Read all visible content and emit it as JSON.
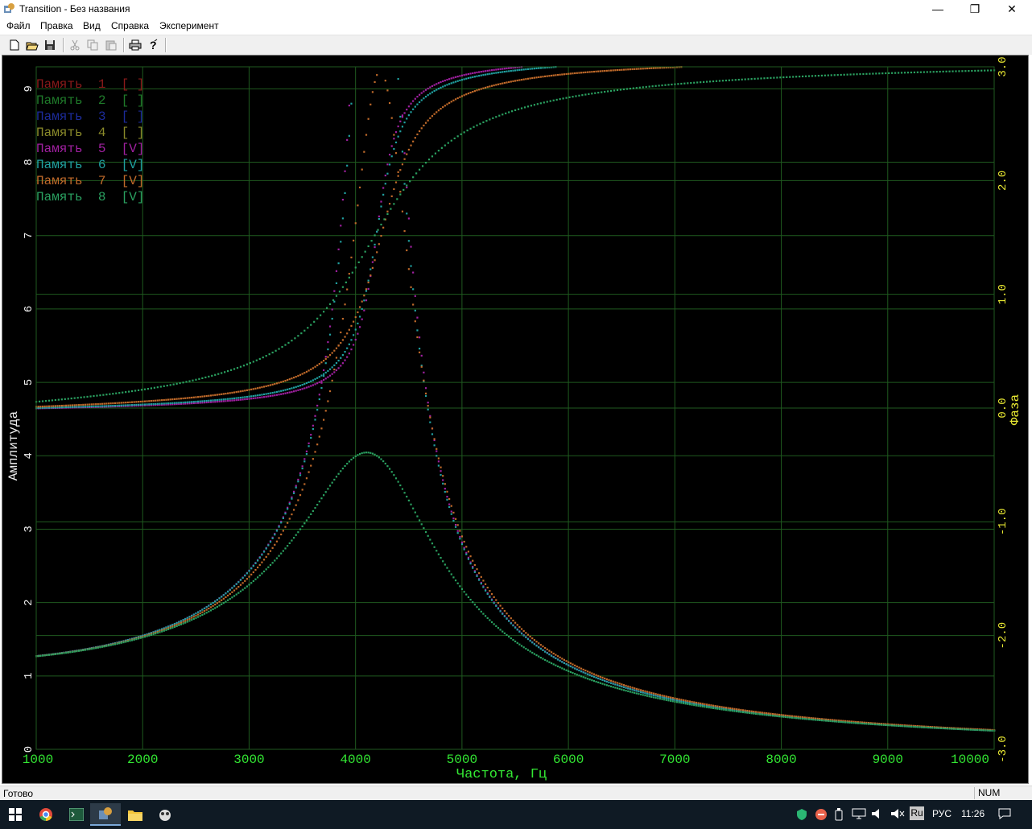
{
  "window": {
    "title": "Transition - Без названия",
    "controls": {
      "minimize": "—",
      "maximize": "❐",
      "close": "✕"
    }
  },
  "menu": [
    "Файл",
    "Правка",
    "Вид",
    "Справка",
    "Эксперимент"
  ],
  "toolbar": [
    "new-file-icon",
    "open-folder-icon",
    "save-icon",
    "cut-icon",
    "copy-icon",
    "paste-icon",
    "print-icon",
    "help-icon"
  ],
  "status": {
    "text": "Готово",
    "num": "NUM"
  },
  "taskbar": {
    "apps": [
      "windows-start-icon",
      "chrome-icon",
      "terminal-icon",
      "transition-app-icon",
      "file-explorer-icon",
      "game-app-icon"
    ],
    "tray": {
      "lang_badge": "Ru",
      "lang": "РУС",
      "time": "11:26"
    }
  },
  "chart_data": {
    "type": "scatter",
    "xlabel": "Частота, Гц",
    "ylabel": "Амплитуда",
    "y2label": "Фаза",
    "xlim": [
      1000,
      10000
    ],
    "ylim": [
      0,
      9.3
    ],
    "y2lim": [
      -3.0,
      3.0
    ],
    "x_ticks": [
      "1000",
      "2000",
      "3000",
      "4000",
      "5000",
      "6000",
      "7000",
      "8000",
      "9000",
      "10000"
    ],
    "y_ticks": [
      "0",
      "1",
      "2",
      "3",
      "4",
      "5",
      "6",
      "7",
      "8",
      "9"
    ],
    "y2_ticks": [
      "-3.0",
      "-2.0",
      "-1.0",
      "0.0",
      "1.0",
      "2.0",
      "3.0"
    ],
    "grid": true,
    "legend_position": "top-left",
    "legend": [
      {
        "label": "Память  1  [ ]",
        "color": "#8b1a1a"
      },
      {
        "label": "Память  2  [ ]",
        "color": "#1f7a2a"
      },
      {
        "label": "Память  3  [ ]",
        "color": "#1c2b9a"
      },
      {
        "label": "Память  4  [ ]",
        "color": "#8a8a2a"
      },
      {
        "label": "Память  5  [V]",
        "color": "#a020a0"
      },
      {
        "label": "Память  6  [V]",
        "color": "#20a0a0"
      },
      {
        "label": "Память  7  [V]",
        "color": "#c06a2a"
      },
      {
        "label": "Память  8  [V]",
        "color": "#2aa060"
      }
    ],
    "series": [
      {
        "name": "Память 5",
        "color": "#a020a0",
        "f0": 4200,
        "zeta": 0.035,
        "dc": 1.2,
        "phase_step": 20
      },
      {
        "name": "Память 6",
        "color": "#20a0a0",
        "f0": 4200,
        "zeta": 0.042,
        "dc": 1.2,
        "phase_step": 20
      },
      {
        "name": "Память 7",
        "color": "#c06a2a",
        "f0": 4250,
        "zeta": 0.065,
        "dc": 1.2,
        "phase_step": 20
      },
      {
        "name": "Память 8",
        "color": "#2aa060",
        "f0": 4200,
        "zeta": 0.15,
        "dc": 1.2,
        "phase_step": 30
      }
    ]
  }
}
